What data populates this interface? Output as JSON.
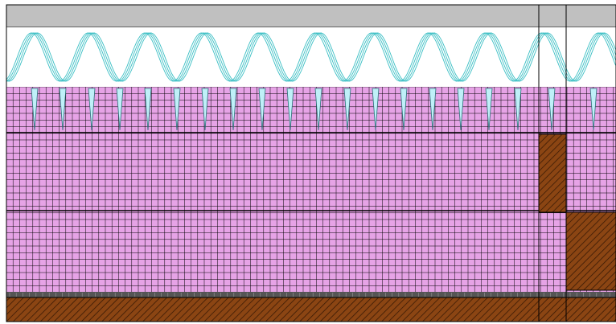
{
  "drawing": {
    "colors": {
      "top_band": "#c0c0c0",
      "coil": "#3bbfc4",
      "coil_background": "#ffffff",
      "mesh_fill": "#e6a3e6",
      "mesh_line": "#000000",
      "spike_fill": "#bff0f8",
      "spike_outline": "#2c6e78",
      "hatch_fill": "#8b4513",
      "hatch_line": "#3a1a05",
      "dark_strip": "#555555",
      "frame_line": "#000000"
    }
  }
}
